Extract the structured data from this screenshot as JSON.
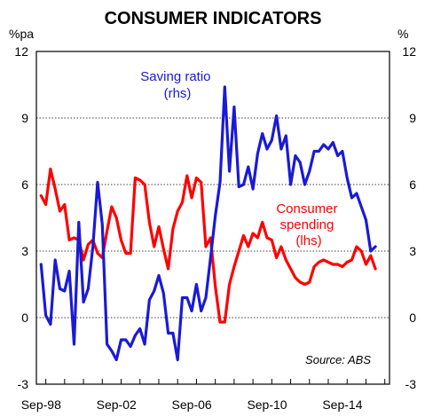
{
  "chart_data": {
    "type": "line",
    "title": "CONSUMER INDICATORS",
    "left_unit": "%pa",
    "right_unit": "%",
    "ylim": [
      -3,
      12
    ],
    "yticks": [
      "-3",
      "0",
      "3",
      "6",
      "9",
      "12"
    ],
    "x_tick_labels": [
      "Sep-98",
      "Sep-02",
      "Sep-06",
      "Sep-10",
      "Sep-14"
    ],
    "xlim": [
      1998.5,
      2017.25
    ],
    "grid": "horizontal-dotted",
    "source": "Source: ABS",
    "colors": {
      "saving": "#1a1ad6",
      "spending": "#ff0000",
      "axes": "#000000"
    },
    "series": [
      {
        "name": "Saving ratio",
        "label_lines": [
          "Saving ratio",
          "(rhs)"
        ],
        "axis": "right",
        "x": [
          1998.75,
          1999.0,
          1999.25,
          1999.5,
          1999.75,
          2000.0,
          2000.25,
          2000.5,
          2000.75,
          2001.0,
          2001.25,
          2001.5,
          2001.75,
          2002.0,
          2002.25,
          2002.5,
          2002.75,
          2003.0,
          2003.25,
          2003.5,
          2003.75,
          2004.0,
          2004.25,
          2004.5,
          2004.75,
          2005.0,
          2005.25,
          2005.5,
          2005.75,
          2006.0,
          2006.25,
          2006.5,
          2006.75,
          2007.0,
          2007.25,
          2007.5,
          2007.75,
          2008.0,
          2008.25,
          2008.5,
          2008.75,
          2009.0,
          2009.25,
          2009.5,
          2009.75,
          2010.0,
          2010.25,
          2010.5,
          2010.75,
          2011.0,
          2011.25,
          2011.5,
          2011.75,
          2012.0,
          2012.25,
          2012.5,
          2012.75,
          2013.0,
          2013.25,
          2013.5,
          2013.75,
          2014.0,
          2014.25,
          2014.5,
          2014.75,
          2015.0,
          2015.25,
          2015.5,
          2015.75,
          2016.0,
          2016.25,
          2016.5
        ],
        "values": [
          2.4,
          0.1,
          -0.3,
          2.6,
          1.3,
          1.2,
          2.1,
          -1.2,
          4.3,
          0.7,
          1.3,
          3.2,
          6.1,
          4.2,
          -1.2,
          -1.5,
          -1.9,
          -1.0,
          -1.0,
          -1.3,
          -0.8,
          -0.5,
          -1.2,
          0.8,
          1.2,
          1.9,
          1.1,
          -0.7,
          -0.7,
          -1.9,
          0.9,
          0.9,
          0.3,
          1.5,
          0.3,
          0.9,
          2.7,
          4.6,
          6.1,
          10.4,
          6.6,
          9.5,
          5.9,
          6.0,
          6.8,
          5.8,
          7.4,
          8.3,
          7.6,
          8.0,
          9.1,
          7.6,
          8.2,
          6.0,
          7.3,
          7.0,
          6.0,
          6.6,
          7.5,
          7.5,
          7.8,
          7.6,
          7.9,
          7.3,
          7.5,
          6.3,
          5.4,
          5.6,
          5.0,
          4.4,
          3.0,
          3.2
        ]
      },
      {
        "name": "Consumer spending",
        "label_lines": [
          "Consumer",
          "spending",
          "(lhs)"
        ],
        "axis": "left",
        "x": [
          1998.75,
          1999.0,
          1999.25,
          1999.5,
          1999.75,
          2000.0,
          2000.25,
          2000.5,
          2000.75,
          2001.0,
          2001.25,
          2001.5,
          2001.75,
          2002.0,
          2002.25,
          2002.5,
          2002.75,
          2003.0,
          2003.25,
          2003.5,
          2003.75,
          2004.0,
          2004.25,
          2004.5,
          2004.75,
          2005.0,
          2005.25,
          2005.5,
          2005.75,
          2006.0,
          2006.25,
          2006.5,
          2006.75,
          2007.0,
          2007.25,
          2007.5,
          2007.75,
          2008.0,
          2008.25,
          2008.5,
          2008.75,
          2009.0,
          2009.25,
          2009.5,
          2009.75,
          2010.0,
          2010.25,
          2010.5,
          2010.75,
          2011.0,
          2011.25,
          2011.5,
          2011.75,
          2012.0,
          2012.25,
          2012.5,
          2012.75,
          2013.0,
          2013.25,
          2013.5,
          2013.75,
          2014.0,
          2014.25,
          2014.5,
          2014.75,
          2015.0,
          2015.25,
          2015.5,
          2015.75,
          2016.0,
          2016.25,
          2016.5
        ],
        "values": [
          5.5,
          5.1,
          6.7,
          5.8,
          4.8,
          5.1,
          3.5,
          3.6,
          3.5,
          2.6,
          3.3,
          3.5,
          2.9,
          2.7,
          3.9,
          5.0,
          4.5,
          3.5,
          2.9,
          2.9,
          6.3,
          6.2,
          6.0,
          4.3,
          3.2,
          4.1,
          3.1,
          2.2,
          4.0,
          4.8,
          5.2,
          6.4,
          5.4,
          6.3,
          6.1,
          3.2,
          3.6,
          1.4,
          -0.2,
          -0.2,
          1.5,
          2.3,
          3.0,
          3.7,
          3.2,
          3.8,
          3.6,
          4.3,
          3.6,
          3.5,
          2.7,
          3.2,
          2.6,
          2.2,
          1.8,
          1.6,
          1.5,
          1.6,
          2.3,
          2.5,
          2.6,
          2.5,
          2.4,
          2.4,
          2.3,
          2.5,
          2.6,
          3.2,
          3.0,
          2.4,
          2.8,
          2.2
        ]
      }
    ]
  }
}
